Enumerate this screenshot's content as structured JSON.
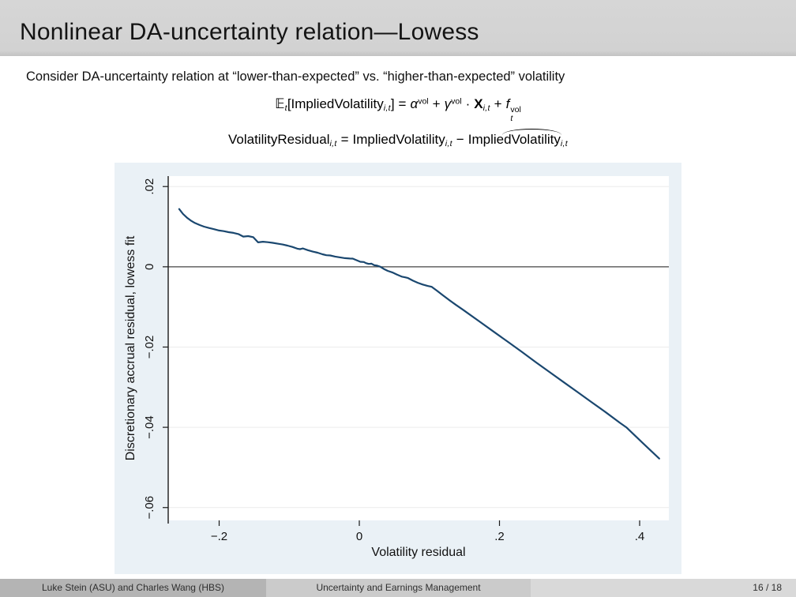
{
  "slide": {
    "title": "Nonlinear DA-uncertainty relation—Lowess",
    "intro": "Consider DA-uncertainty relation at “lower-than-expected” vs. “higher-than-expected” volatility",
    "formula1": {
      "E": "𝔼",
      "E_sub": "t",
      "lbracket": "[",
      "lhs": "ImpliedVolatility",
      "lhs_sub": "i,t",
      "rbracket": "]",
      "eq": "=",
      "alpha": "α",
      "alpha_sup": "vol",
      "plus1": "+",
      "gamma": "γ",
      "gamma_sup": "vol",
      "cdot": "·",
      "X": "X",
      "X_sub": "i,t",
      "plus2": "+",
      "f": "f",
      "f_sup": "vol",
      "f_sub": "t"
    },
    "formula2": {
      "lhs": "VolatilityResidual",
      "lhs_sub": "i,t",
      "eq": "=",
      "rhs1": "ImpliedVolatility",
      "rhs1_sub": "i,t",
      "minus": "−",
      "rhs2": "ImpliedVolatility",
      "rhs2_sub": "i,t"
    }
  },
  "footer": {
    "authors": "Luke Stein (ASU) and Charles Wang (HBS)",
    "paper_title": "Uncertainty and Earnings Management",
    "page": "16 / 18"
  },
  "chart_data": {
    "type": "line",
    "title": "",
    "xlabel": "Volatility residual",
    "ylabel": "Discretionary accrual residual, lowess fit",
    "xlim": [
      -0.2727,
      0.4417
    ],
    "ylim": [
      -0.0632,
      0.0226
    ],
    "x_ticks": [
      -0.2,
      0,
      0.2,
      0.4
    ],
    "x_tick_labels": [
      "−.2",
      "0",
      ".2",
      ".4"
    ],
    "y_ticks": [
      0.02,
      0,
      -0.02,
      -0.04,
      -0.06
    ],
    "y_tick_labels": [
      ".02",
      "0",
      "−.02",
      "−.04",
      "−.06"
    ],
    "refline_y": 0,
    "grid": true,
    "legend": "none",
    "colors": {
      "line": "#1a476f",
      "background": "#eaf1f6",
      "plot_background": "#ffffff",
      "gridline": "#ececec",
      "refline": "#444444",
      "axis": "#1a1a1a"
    },
    "series": [
      {
        "name": "lowess fit",
        "points": [
          [
            -0.257,
            0.0144
          ],
          [
            -0.2515,
            0.01315
          ],
          [
            -0.246,
            0.01225
          ],
          [
            -0.2405,
            0.01152
          ],
          [
            -0.2345,
            0.01092
          ],
          [
            -0.228,
            0.01042
          ],
          [
            -0.2215,
            0.01
          ],
          [
            -0.2145,
            0.00968
          ],
          [
            -0.2075,
            0.00938
          ],
          [
            -0.2,
            0.00905
          ],
          [
            -0.1935,
            0.00888
          ],
          [
            -0.1865,
            0.00862
          ],
          [
            -0.1795,
            0.00845
          ],
          [
            -0.1725,
            0.00815
          ],
          [
            -0.1655,
            0.00752
          ],
          [
            -0.1585,
            0.00765
          ],
          [
            -0.1515,
            0.00738
          ],
          [
            -0.1445,
            0.00608
          ],
          [
            -0.1375,
            0.00625
          ],
          [
            -0.1305,
            0.00612
          ],
          [
            -0.1235,
            0.00598
          ],
          [
            -0.1165,
            0.00575
          ],
          [
            -0.1095,
            0.00555
          ],
          [
            -0.1025,
            0.00528
          ],
          [
            -0.0955,
            0.00495
          ],
          [
            -0.0885,
            0.00452
          ],
          [
            -0.0845,
            0.00439
          ],
          [
            -0.0805,
            0.00458
          ],
          [
            -0.0735,
            0.00415
          ],
          [
            -0.0665,
            0.00378
          ],
          [
            -0.0595,
            0.00352
          ],
          [
            -0.0525,
            0.00312
          ],
          [
            -0.047,
            0.00289
          ],
          [
            -0.0415,
            0.00282
          ],
          [
            -0.0345,
            0.00255
          ],
          [
            -0.0275,
            0.00235
          ],
          [
            -0.0205,
            0.00215
          ],
          [
            -0.0135,
            0.00205
          ],
          [
            -0.0094,
            0.00203
          ],
          [
            -0.004,
            0.00165
          ],
          [
            0.0015,
            0.00125
          ],
          [
            0.0065,
            0.00118
          ],
          [
            0.0094,
            0.00092
          ],
          [
            0.0135,
            0.00072
          ],
          [
            0.0175,
            0.00078
          ],
          [
            0.0215,
            0.00038
          ],
          [
            0.0255,
            0.00028
          ],
          [
            0.03,
            0.0
          ],
          [
            0.035,
            -0.00055
          ],
          [
            0.0405,
            -0.00102
          ],
          [
            0.047,
            -0.00138
          ],
          [
            0.0535,
            -0.00192
          ],
          [
            0.0605,
            -0.00245
          ],
          [
            0.0655,
            -0.00262
          ],
          [
            0.0695,
            -0.00281
          ],
          [
            0.0765,
            -0.00345
          ],
          [
            0.0835,
            -0.00398
          ],
          [
            0.0905,
            -0.00442
          ],
          [
            0.0975,
            -0.00478
          ],
          [
            0.1033,
            -0.00498
          ],
          [
            0.111,
            -0.00598
          ],
          [
            0.119,
            -0.00705
          ],
          [
            0.128,
            -0.00825
          ],
          [
            0.138,
            -0.00952
          ],
          [
            0.148,
            -0.01072
          ],
          [
            0.152,
            -0.0112
          ],
          [
            0.172,
            -0.0137
          ],
          [
            0.192,
            -0.0162
          ],
          [
            0.212,
            -0.0187
          ],
          [
            0.232,
            -0.0212
          ],
          [
            0.252,
            -0.0238
          ],
          [
            0.272,
            -0.0263
          ],
          [
            0.292,
            -0.0288
          ],
          [
            0.312,
            -0.0313
          ],
          [
            0.332,
            -0.0338
          ],
          [
            0.352,
            -0.0363
          ],
          [
            0.372,
            -0.0389
          ],
          [
            0.381,
            -0.04
          ],
          [
            0.393,
            -0.042
          ],
          [
            0.405,
            -0.044
          ],
          [
            0.417,
            -0.046
          ],
          [
            0.428,
            -0.0478
          ]
        ]
      }
    ]
  }
}
